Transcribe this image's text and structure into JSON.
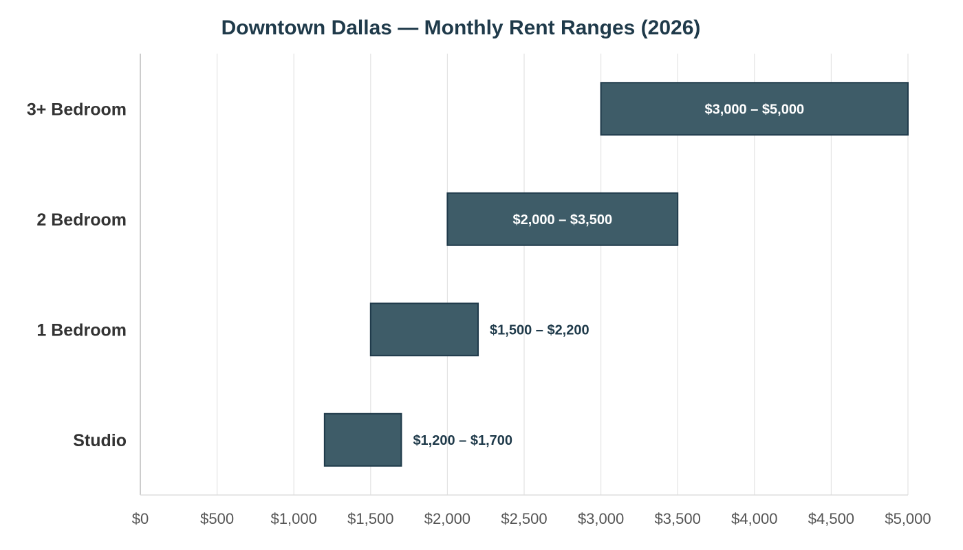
{
  "chart_data": {
    "type": "bar",
    "orientation": "horizontal",
    "subtype": "floating-range",
    "title": "Downtown Dallas — Monthly Rent Ranges (2026)",
    "xlabel": "",
    "ylabel": "",
    "xlim": [
      0,
      5000
    ],
    "x_ticks": [
      {
        "value": 0,
        "label": "$0"
      },
      {
        "value": 500,
        "label": "$500"
      },
      {
        "value": 1000,
        "label": "$1,000"
      },
      {
        "value": 1500,
        "label": "$1,500"
      },
      {
        "value": 2000,
        "label": "$2,000"
      },
      {
        "value": 2500,
        "label": "$2,500"
      },
      {
        "value": 3000,
        "label": "$3,000"
      },
      {
        "value": 3500,
        "label": "$3,500"
      },
      {
        "value": 4000,
        "label": "$4,000"
      },
      {
        "value": 4500,
        "label": "$4,500"
      },
      {
        "value": 5000,
        "label": "$5,000"
      }
    ],
    "grid": true,
    "bar_color": "#3e5c68",
    "bar_edge_color": "#1f3a4a",
    "inside_label_color": "#ffffff",
    "outside_label_color": "#1f3a4a",
    "categories": [
      "3+ Bedroom",
      "2 Bedroom",
      "1 Bedroom",
      "Studio"
    ],
    "ranges": [
      {
        "category": "3+ Bedroom",
        "min": 3000,
        "max": 5000,
        "label": "$3,000 – $5,000"
      },
      {
        "category": "2 Bedroom",
        "min": 2000,
        "max": 3500,
        "label": "$2,000 – $3,500"
      },
      {
        "category": "1 Bedroom",
        "min": 1500,
        "max": 2200,
        "label": "$1,500 – $2,200"
      },
      {
        "category": "Studio",
        "min": 1200,
        "max": 1700,
        "label": "$1,200 – $1,700"
      }
    ]
  }
}
